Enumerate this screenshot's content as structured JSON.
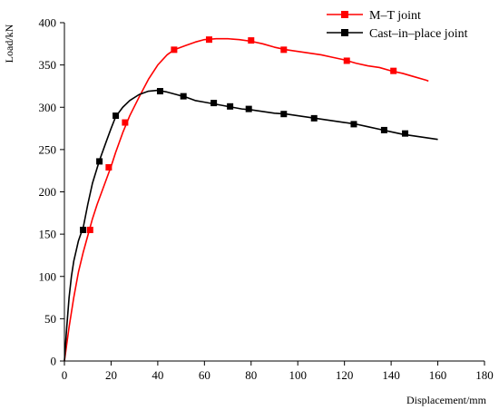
{
  "chart_data": {
    "type": "line",
    "xlabel": "Displacement/mm",
    "ylabel": "Load/kN",
    "xlim": [
      0,
      180
    ],
    "ylim": [
      0,
      400
    ],
    "xticks": [
      0,
      20,
      40,
      60,
      80,
      100,
      120,
      140,
      160,
      180
    ],
    "yticks": [
      0,
      50,
      100,
      150,
      200,
      250,
      300,
      350,
      400
    ],
    "grid": false,
    "legend_position": "top-right",
    "series": [
      {
        "name": "M–T joint",
        "color": "#ff0000",
        "marker": "square",
        "curve": [
          [
            0,
            0
          ],
          [
            2,
            40
          ],
          [
            4,
            75
          ],
          [
            6,
            105
          ],
          [
            8,
            128
          ],
          [
            10,
            148
          ],
          [
            12,
            168
          ],
          [
            14,
            185
          ],
          [
            16,
            200
          ],
          [
            18,
            215
          ],
          [
            20,
            230
          ],
          [
            22,
            247
          ],
          [
            25,
            270
          ],
          [
            28,
            290
          ],
          [
            32,
            312
          ],
          [
            36,
            333
          ],
          [
            40,
            350
          ],
          [
            44,
            362
          ],
          [
            47,
            368
          ],
          [
            52,
            373
          ],
          [
            56,
            377
          ],
          [
            60,
            380
          ],
          [
            65,
            381
          ],
          [
            70,
            381
          ],
          [
            75,
            380
          ],
          [
            80,
            378
          ],
          [
            85,
            375
          ],
          [
            90,
            371
          ],
          [
            95,
            368
          ],
          [
            100,
            366
          ],
          [
            105,
            364
          ],
          [
            110,
            362
          ],
          [
            115,
            359
          ],
          [
            120,
            356
          ],
          [
            125,
            352
          ],
          [
            130,
            349
          ],
          [
            135,
            347
          ],
          [
            140,
            343
          ],
          [
            145,
            340
          ],
          [
            150,
            336
          ],
          [
            155,
            332
          ],
          [
            156,
            331
          ]
        ],
        "points": [
          [
            11,
            155
          ],
          [
            19,
            229
          ],
          [
            26,
            282
          ],
          [
            47,
            368
          ],
          [
            62,
            380
          ],
          [
            80,
            379
          ],
          [
            94,
            368
          ],
          [
            121,
            355
          ],
          [
            141,
            343
          ]
        ]
      },
      {
        "name": "Cast–in–place joint",
        "color": "#000000",
        "marker": "square",
        "curve": [
          [
            0,
            0
          ],
          [
            1,
            40
          ],
          [
            2,
            75
          ],
          [
            3,
            100
          ],
          [
            4,
            118
          ],
          [
            5,
            130
          ],
          [
            6,
            142
          ],
          [
            7,
            150
          ],
          [
            8,
            157
          ],
          [
            10,
            185
          ],
          [
            12,
            210
          ],
          [
            15,
            237
          ],
          [
            18,
            260
          ],
          [
            20,
            275
          ],
          [
            22,
            289
          ],
          [
            25,
            300
          ],
          [
            28,
            308
          ],
          [
            32,
            315
          ],
          [
            36,
            319
          ],
          [
            40,
            320
          ],
          [
            44,
            318
          ],
          [
            48,
            315
          ],
          [
            52,
            312
          ],
          [
            56,
            308
          ],
          [
            60,
            306
          ],
          [
            64,
            304
          ],
          [
            68,
            302
          ],
          [
            72,
            300
          ],
          [
            76,
            298
          ],
          [
            80,
            297
          ],
          [
            85,
            295
          ],
          [
            90,
            293
          ],
          [
            95,
            292
          ],
          [
            100,
            290
          ],
          [
            105,
            288
          ],
          [
            110,
            286
          ],
          [
            115,
            284
          ],
          [
            120,
            282
          ],
          [
            125,
            280
          ],
          [
            130,
            277
          ],
          [
            135,
            274
          ],
          [
            140,
            271
          ],
          [
            145,
            268
          ],
          [
            150,
            266
          ],
          [
            155,
            264
          ],
          [
            160,
            262
          ]
        ],
        "points": [
          [
            8,
            155
          ],
          [
            15,
            236
          ],
          [
            22,
            290
          ],
          [
            41,
            319
          ],
          [
            51,
            313
          ],
          [
            64,
            305
          ],
          [
            71,
            301
          ],
          [
            79,
            298
          ],
          [
            94,
            292
          ],
          [
            107,
            287
          ],
          [
            124,
            280
          ],
          [
            137,
            273
          ],
          [
            146,
            269
          ]
        ]
      }
    ]
  }
}
